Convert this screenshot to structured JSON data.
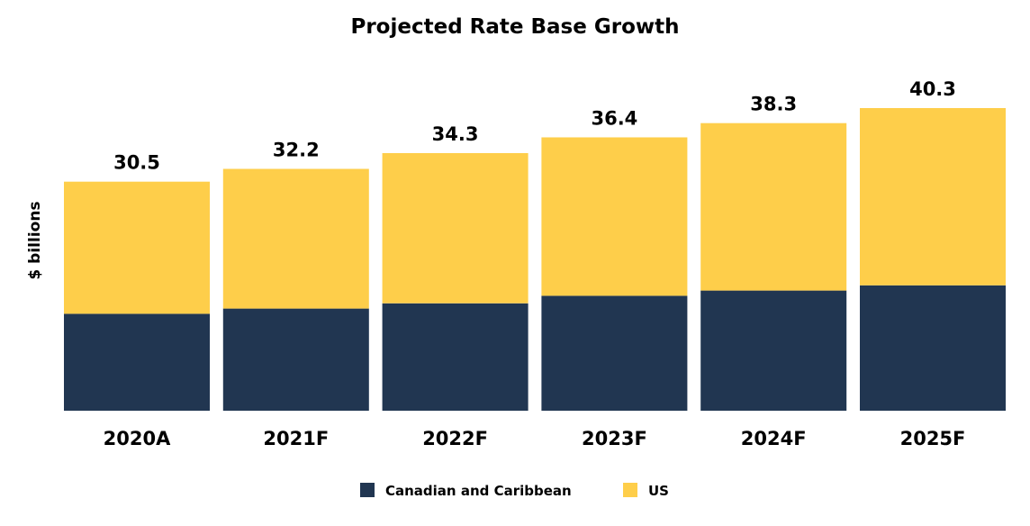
{
  "chart_data": {
    "type": "bar",
    "stacked": true,
    "title": "Projected Rate Base Growth",
    "xlabel": "",
    "ylabel": "$ billions",
    "ylim": [
      0,
      40.3
    ],
    "grid": false,
    "legend_position": "bottom-center",
    "categories": [
      "2020A",
      "2021F",
      "2022F",
      "2023F",
      "2024F",
      "2025F"
    ],
    "series": [
      {
        "name": "Canadian and Caribbean",
        "color": "#213651",
        "values": [
          12.9,
          13.6,
          14.3,
          15.3,
          16.0,
          16.7
        ]
      },
      {
        "name": "US",
        "color": "#FECE4A",
        "values": [
          17.6,
          18.6,
          20.0,
          21.1,
          22.3,
          23.6
        ]
      }
    ],
    "totals": [
      "30.5",
      "32.2",
      "34.3",
      "36.4",
      "38.3",
      "40.3"
    ]
  }
}
